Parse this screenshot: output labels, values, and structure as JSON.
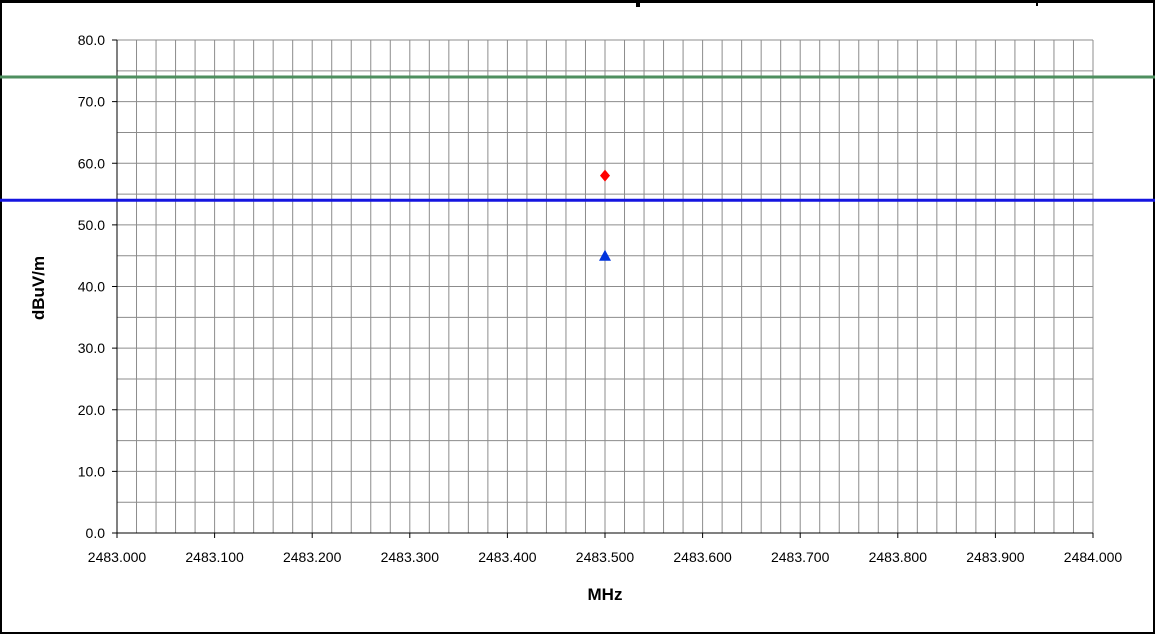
{
  "chart_data": {
    "type": "scatter",
    "xlabel": "MHz",
    "ylabel": "dBuV/m",
    "xlim": [
      2483.0,
      2484.0
    ],
    "ylim": [
      0,
      80
    ],
    "x_ticks": [
      "2483.000",
      "2483.100",
      "2483.200",
      "2483.300",
      "2483.400",
      "2483.500",
      "2483.600",
      "2483.700",
      "2483.800",
      "2483.900",
      "2484.000"
    ],
    "y_ticks": [
      "0.0",
      "10.0",
      "20.0",
      "30.0",
      "40.0",
      "50.0",
      "60.0",
      "70.0",
      "80.0"
    ],
    "x_minor_step": 0.02,
    "y_minor_step": 5,
    "grid": true,
    "reference_lines": [
      {
        "y": 74,
        "color": "#4E8F5F"
      },
      {
        "y": 54,
        "color": "#1515E0"
      }
    ],
    "series": [
      {
        "marker": "diamond",
        "color": "#FF0000",
        "points": [
          {
            "x": 2483.5,
            "y": 58.0
          }
        ]
      },
      {
        "marker": "triangle",
        "color": "#0033DD",
        "points": [
          {
            "x": 2483.5,
            "y": 45.0
          }
        ]
      }
    ]
  }
}
